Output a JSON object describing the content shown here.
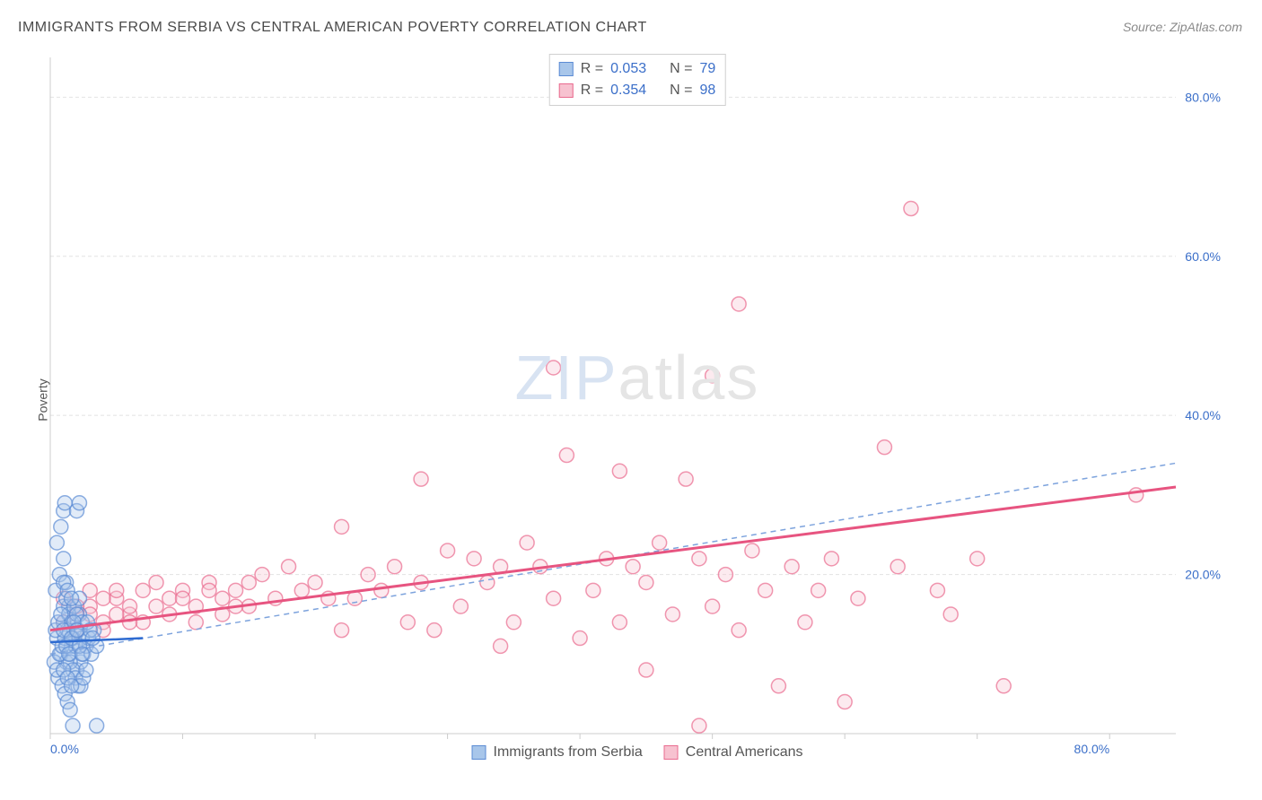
{
  "title": "IMMIGRANTS FROM SERBIA VS CENTRAL AMERICAN POVERTY CORRELATION CHART",
  "source": "Source: ZipAtlas.com",
  "yaxis_label": "Poverty",
  "watermark": {
    "part1": "ZIP",
    "part2": "atlas"
  },
  "chart": {
    "type": "scatter",
    "xlim": [
      0,
      85
    ],
    "ylim": [
      0,
      85
    ],
    "background_color": "#ffffff",
    "grid_color": "#e2e2e2",
    "grid_dash": "4,3",
    "axis_line_color": "#cccccc",
    "tick_color": "#cccccc",
    "tick_label_color": "#3b6fc9",
    "tick_fontsize": 14,
    "x_ticks": [
      0,
      10,
      20,
      30,
      40,
      50,
      60,
      70,
      80
    ],
    "x_tick_labels": [
      "0.0%",
      "",
      "",
      "",
      "",
      "",
      "",
      "",
      "80.0%"
    ],
    "y_ticks": [
      20,
      40,
      60,
      80
    ],
    "y_tick_labels": [
      "20.0%",
      "40.0%",
      "60.0%",
      "80.0%"
    ],
    "marker_radius": 8,
    "marker_fill_opacity": 0.35,
    "marker_stroke_width": 1.5,
    "series": [
      {
        "name": "Immigrants from Serbia",
        "color_fill": "#a8c6ea",
        "color_stroke": "#5b8bd4",
        "points": [
          [
            0.5,
            12
          ],
          [
            0.8,
            10
          ],
          [
            1.0,
            14
          ],
          [
            1.2,
            9
          ],
          [
            1.4,
            16
          ],
          [
            1.6,
            11
          ],
          [
            1.8,
            13
          ],
          [
            2.0,
            8
          ],
          [
            2.2,
            15
          ],
          [
            2.4,
            12
          ],
          [
            0.6,
            7
          ],
          [
            0.9,
            6
          ],
          [
            1.1,
            5
          ],
          [
            1.3,
            4
          ],
          [
            1.5,
            3
          ],
          [
            1.7,
            1
          ],
          [
            0.4,
            18
          ],
          [
            0.7,
            20
          ],
          [
            1.0,
            22
          ],
          [
            1.2,
            19
          ],
          [
            0.5,
            24
          ],
          [
            0.8,
            26
          ],
          [
            1.0,
            28
          ],
          [
            1.1,
            29
          ],
          [
            2.0,
            28
          ],
          [
            2.2,
            29
          ],
          [
            1.5,
            10
          ],
          [
            1.7,
            12
          ],
          [
            1.9,
            11
          ],
          [
            2.1,
            13
          ],
          [
            2.3,
            9
          ],
          [
            2.5,
            10
          ],
          [
            2.7,
            11
          ],
          [
            2.9,
            12
          ],
          [
            3.1,
            10
          ],
          [
            3.3,
            13
          ],
          [
            3.5,
            11
          ],
          [
            1.0,
            16
          ],
          [
            1.2,
            17
          ],
          [
            1.4,
            15
          ],
          [
            1.6,
            14
          ],
          [
            1.8,
            16
          ],
          [
            2.0,
            15
          ],
          [
            2.2,
            17
          ],
          [
            2.4,
            14
          ],
          [
            0.3,
            9
          ],
          [
            0.5,
            8
          ],
          [
            0.7,
            10
          ],
          [
            0.9,
            11
          ],
          [
            1.1,
            12
          ],
          [
            1.3,
            13
          ],
          [
            1.5,
            9
          ],
          [
            1.7,
            8
          ],
          [
            1.9,
            7
          ],
          [
            2.1,
            6
          ],
          [
            2.3,
            6
          ],
          [
            2.5,
            7
          ],
          [
            2.7,
            8
          ],
          [
            0.4,
            13
          ],
          [
            0.6,
            14
          ],
          [
            0.8,
            15
          ],
          [
            1.0,
            13
          ],
          [
            1.2,
            11
          ],
          [
            1.4,
            10
          ],
          [
            1.6,
            12
          ],
          [
            1.8,
            14
          ],
          [
            2.0,
            13
          ],
          [
            2.2,
            11
          ],
          [
            2.4,
            10
          ],
          [
            3.5,
            1
          ],
          [
            2.8,
            14
          ],
          [
            3.0,
            13
          ],
          [
            3.2,
            12
          ],
          [
            1.0,
            19
          ],
          [
            1.3,
            18
          ],
          [
            1.6,
            17
          ],
          [
            1.0,
            8
          ],
          [
            1.3,
            7
          ],
          [
            1.6,
            6
          ]
        ],
        "trend_solid": {
          "x1": 0,
          "y1": 11.5,
          "x2": 7,
          "y2": 12.0,
          "color": "#2e6bd1",
          "width": 2.5
        },
        "trend_dashed": {
          "x1": 0,
          "y1": 10,
          "x2": 85,
          "y2": 34,
          "color": "#7da3dd",
          "width": 1.5,
          "dash": "6,5"
        }
      },
      {
        "name": "Central Americans",
        "color_fill": "#f7c2d0",
        "color_stroke": "#e96b8f",
        "points": [
          [
            1,
            14
          ],
          [
            2,
            15
          ],
          [
            3,
            16
          ],
          [
            4,
            14
          ],
          [
            5,
            17
          ],
          [
            6,
            15
          ],
          [
            7,
            18
          ],
          [
            8,
            16
          ],
          [
            9,
            17
          ],
          [
            10,
            18
          ],
          [
            11,
            16
          ],
          [
            12,
            19
          ],
          [
            13,
            17
          ],
          [
            14,
            18
          ],
          [
            15,
            16
          ],
          [
            16,
            20
          ],
          [
            17,
            17
          ],
          [
            18,
            21
          ],
          [
            19,
            18
          ],
          [
            20,
            19
          ],
          [
            21,
            17
          ],
          [
            22,
            26
          ],
          [
            22,
            13
          ],
          [
            23,
            17
          ],
          [
            24,
            20
          ],
          [
            25,
            18
          ],
          [
            26,
            21
          ],
          [
            27,
            14
          ],
          [
            28,
            32
          ],
          [
            28,
            19
          ],
          [
            29,
            13
          ],
          [
            30,
            23
          ],
          [
            31,
            16
          ],
          [
            32,
            22
          ],
          [
            33,
            19
          ],
          [
            34,
            21
          ],
          [
            34,
            11
          ],
          [
            35,
            14
          ],
          [
            36,
            24
          ],
          [
            37,
            21
          ],
          [
            38,
            46
          ],
          [
            38,
            17
          ],
          [
            39,
            35
          ],
          [
            40,
            12
          ],
          [
            41,
            18
          ],
          [
            42,
            22
          ],
          [
            43,
            33
          ],
          [
            43,
            14
          ],
          [
            44,
            21
          ],
          [
            45,
            8
          ],
          [
            45,
            19
          ],
          [
            46,
            24
          ],
          [
            47,
            15
          ],
          [
            48,
            32
          ],
          [
            49,
            22
          ],
          [
            49,
            1
          ],
          [
            50,
            45
          ],
          [
            50,
            16
          ],
          [
            51,
            20
          ],
          [
            52,
            13
          ],
          [
            52,
            54
          ],
          [
            53,
            23
          ],
          [
            54,
            18
          ],
          [
            55,
            6
          ],
          [
            56,
            21
          ],
          [
            57,
            14
          ],
          [
            58,
            18
          ],
          [
            59,
            22
          ],
          [
            60,
            4
          ],
          [
            61,
            17
          ],
          [
            63,
            36
          ],
          [
            64,
            21
          ],
          [
            65,
            66
          ],
          [
            67,
            18
          ],
          [
            68,
            15
          ],
          [
            70,
            22
          ],
          [
            72,
            6
          ],
          [
            82,
            30
          ],
          [
            4,
            13
          ],
          [
            5,
            18
          ],
          [
            6,
            16
          ],
          [
            7,
            14
          ],
          [
            8,
            19
          ],
          [
            9,
            15
          ],
          [
            10,
            17
          ],
          [
            11,
            14
          ],
          [
            12,
            18
          ],
          [
            13,
            15
          ],
          [
            14,
            16
          ],
          [
            15,
            19
          ],
          [
            2,
            16
          ],
          [
            3,
            18
          ],
          [
            4,
            17
          ],
          [
            5,
            15
          ],
          [
            6,
            14
          ],
          [
            1,
            17
          ],
          [
            2,
            13
          ],
          [
            3,
            15
          ]
        ],
        "trend_solid": {
          "x1": 0,
          "y1": 13,
          "x2": 85,
          "y2": 31,
          "color": "#e75480",
          "width": 3
        }
      }
    ]
  },
  "legend_top": {
    "rows": [
      {
        "swatch_fill": "#a8c6ea",
        "swatch_stroke": "#5b8bd4",
        "r_label": "R =",
        "r_val": "0.053",
        "n_label": "N =",
        "n_val": "79"
      },
      {
        "swatch_fill": "#f7c2d0",
        "swatch_stroke": "#e96b8f",
        "r_label": "R =",
        "r_val": "0.354",
        "n_label": "N =",
        "n_val": "98"
      }
    ]
  },
  "legend_bottom": {
    "items": [
      {
        "swatch_fill": "#a8c6ea",
        "swatch_stroke": "#5b8bd4",
        "label": "Immigrants from Serbia"
      },
      {
        "swatch_fill": "#f7c2d0",
        "swatch_stroke": "#e96b8f",
        "label": "Central Americans"
      }
    ]
  }
}
